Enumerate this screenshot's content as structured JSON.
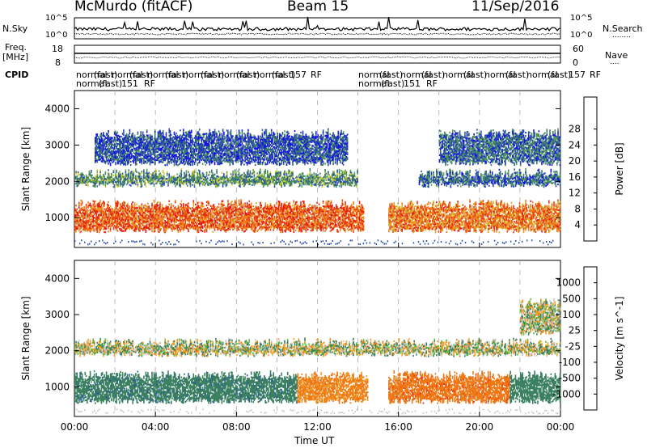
{
  "header": {
    "station": "McMurdo (fitACF)",
    "beam": "Beam 15",
    "date": "11/Sep/2016"
  },
  "top_panel": {
    "nsky_label": "N.Sky",
    "nsearch_label": "N.Search",
    "nsearch_mark": "........",
    "scale_top": "10^5",
    "scale_bottom": "10^0",
    "freq_label": "Freq.",
    "freq_unit": "[MHz]",
    "freq_ticks": [
      "18",
      "8"
    ],
    "nave_label": "Nave",
    "nave_mark": "....",
    "nave_ticks": [
      "60",
      "0"
    ],
    "cpid_label": "CPID"
  },
  "cpid_row1": [
    "normal",
    "(fast)",
    "normal",
    "(fast)",
    "normal",
    "(fast)",
    "normal",
    "(fast)",
    "normal",
    "(fast)",
    "normal",
    "(fast)",
    "157",
    "RF",
    "normal",
    "(fast)",
    "normal",
    "(fast)",
    "normal",
    "(fast)",
    "normal",
    "(fast)",
    "normal",
    "(fast)",
    "157",
    "RF"
  ],
  "cpid_row2": [
    "normal",
    "(fast)",
    "151",
    "RF",
    "normal",
    "(fast)",
    "151",
    "RF"
  ],
  "chart_data": [
    {
      "type": "heatmap",
      "name": "power",
      "ylabel": "Slant Range [km]",
      "xlabel": "Time UT",
      "x_ticks": [
        "00:00",
        "04:00",
        "08:00",
        "12:00",
        "16:00",
        "20:00",
        "00:00"
      ],
      "x_range_hours": [
        0,
        24
      ],
      "y_ticks": [
        1000,
        2000,
        3000,
        4000
      ],
      "ylim": [
        180,
        4500
      ],
      "colorbar_label": "Power [dB]",
      "colorbar_ticks": [
        4,
        8,
        12,
        16,
        20,
        24,
        28
      ],
      "colorbar_range": [
        0,
        32
      ],
      "colors": [
        "#1414e6",
        "#2a4ea8",
        "#3c7a6a",
        "#55a055",
        "#c8c828",
        "#e6a028",
        "#f07818",
        "#e63c14",
        "#e61414"
      ],
      "bands": [
        {
          "range_km": [
            650,
            1350
          ],
          "time_h": [
            0,
            14.3
          ],
          "value_db": 28
        },
        {
          "range_km": [
            650,
            1350
          ],
          "time_h": [
            15.5,
            24
          ],
          "value_db": 26
        },
        {
          "range_km": [
            1900,
            2200
          ],
          "time_h": [
            0,
            14
          ],
          "value_db": 12
        },
        {
          "range_km": [
            1900,
            2200
          ],
          "time_h": [
            17,
            24
          ],
          "value_db": 8
        },
        {
          "range_km": [
            2500,
            3300
          ],
          "time_h": [
            1,
            13.5
          ],
          "value_db": 6
        },
        {
          "range_km": [
            2500,
            3300
          ],
          "time_h": [
            18,
            24
          ],
          "value_db": 8
        }
      ]
    },
    {
      "type": "heatmap",
      "name": "velocity",
      "ylabel": "Slant Range [km]",
      "xlabel": "Time UT",
      "x_ticks": [
        "00:00",
        "04:00",
        "08:00",
        "12:00",
        "16:00",
        "20:00",
        "00:00"
      ],
      "x_range_hours": [
        0,
        24
      ],
      "y_ticks": [
        1000,
        2000,
        3000,
        4000
      ],
      "ylim": [
        180,
        4500
      ],
      "colorbar_label": "Velocity [m s^-1]",
      "colorbar_ticks": [
        1000,
        500,
        100,
        25,
        -25,
        -100,
        -500,
        -1000
      ],
      "colors": [
        "#1e28c8",
        "#2a5aa0",
        "#3a8060",
        "#5ac030",
        "#c8c8c8",
        "#f0a028",
        "#f07814",
        "#e63c14",
        "#e61414"
      ],
      "bands": [
        {
          "range_km": [
            600,
            1300
          ],
          "time_h": [
            0,
            11
          ],
          "value_ms": 300
        },
        {
          "range_km": [
            600,
            1300
          ],
          "time_h": [
            11,
            14.5
          ],
          "value_ms": -150
        },
        {
          "range_km": [
            600,
            1300
          ],
          "time_h": [
            15.5,
            21.5
          ],
          "value_ms": -300
        },
        {
          "range_km": [
            600,
            1300
          ],
          "time_h": [
            21.5,
            24
          ],
          "value_ms": 200
        },
        {
          "range_km": [
            1900,
            2200
          ],
          "time_h": [
            0,
            24
          ],
          "value_ms": 10
        },
        {
          "range_km": [
            2500,
            3300
          ],
          "time_h": [
            22,
            24
          ],
          "value_ms": 10
        }
      ]
    }
  ],
  "time_axis_label": "Time UT"
}
